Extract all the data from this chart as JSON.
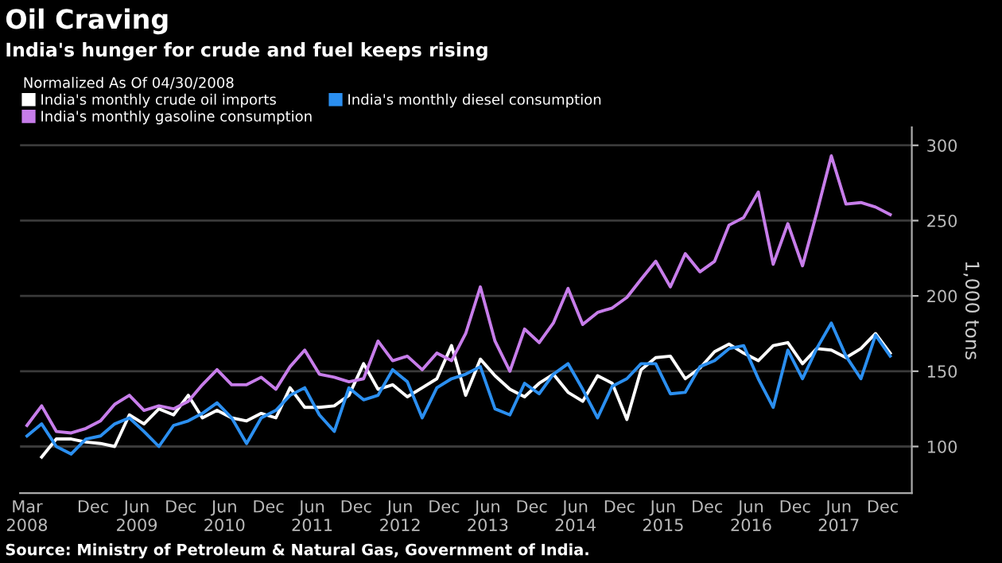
{
  "chart_data": {
    "type": "line",
    "title": "Oil Craving",
    "subtitle": "India's hunger for crude and fuel keeps rising",
    "legend_title": "Normalized As Of 04/30/2008",
    "legend": "top left",
    "ylabel": "1,000 tons",
    "x": [
      "2008-03",
      "2008-05",
      "2008-07",
      "2008-09",
      "2008-11",
      "2009-01",
      "2009-03",
      "2009-05",
      "2009-07",
      "2009-09",
      "2009-11",
      "2010-01",
      "2010-03",
      "2010-05",
      "2010-07",
      "2010-09",
      "2010-11",
      "2011-01",
      "2011-03",
      "2011-05",
      "2011-07",
      "2011-09",
      "2011-11",
      "2012-01",
      "2012-03",
      "2012-05",
      "2012-07",
      "2012-09",
      "2012-11",
      "2013-01",
      "2013-03",
      "2013-05",
      "2013-07",
      "2013-09",
      "2013-11",
      "2014-01",
      "2014-03",
      "2014-05",
      "2014-07",
      "2014-09",
      "2014-11",
      "2015-01",
      "2015-03",
      "2015-05",
      "2015-07",
      "2015-09",
      "2015-11",
      "2016-01",
      "2016-03",
      "2016-05",
      "2016-07",
      "2016-09",
      "2016-11",
      "2017-01",
      "2017-03",
      "2017-05",
      "2017-07",
      "2017-09",
      "2017-11",
      "2018-01"
    ],
    "series": [
      {
        "name": "India's monthly crude oil imports",
        "color": "#ffffff",
        "values": [
          null,
          93,
          105,
          105,
          103,
          102,
          100,
          121,
          115,
          125,
          121,
          134,
          119,
          124,
          119,
          117,
          122,
          119,
          139,
          126,
          126,
          127,
          134,
          155,
          138,
          141,
          133,
          139,
          145,
          167,
          134,
          158,
          147,
          138,
          133,
          142,
          148,
          136,
          130,
          147,
          142,
          118,
          151,
          159,
          160,
          145,
          152,
          163,
          168,
          162,
          157,
          167,
          169,
          155,
          165,
          164,
          159,
          165,
          175,
          162
        ]
      },
      {
        "name": "India's monthly diesel consumption",
        "color": "#2b8ff0",
        "values": [
          107,
          115,
          100,
          95,
          105,
          107,
          115,
          119,
          110,
          100,
          114,
          117,
          122,
          129,
          119,
          102,
          119,
          124,
          134,
          139,
          121,
          110,
          139,
          131,
          134,
          151,
          143,
          119,
          139,
          145,
          148,
          153,
          125,
          121,
          142,
          135,
          148,
          155,
          138,
          119,
          140,
          145,
          155,
          155,
          135,
          136,
          153,
          157,
          165,
          167,
          145,
          126,
          164,
          145,
          165,
          182,
          160,
          145,
          174,
          160
        ]
      },
      {
        "name": "India's monthly gasoline consumption",
        "color": "#c77dea",
        "values": [
          114,
          127,
          110,
          109,
          112,
          117,
          128,
          134,
          124,
          127,
          125,
          130,
          141,
          151,
          141,
          141,
          146,
          138,
          153,
          164,
          148,
          146,
          143,
          145,
          170,
          157,
          160,
          151,
          162,
          157,
          175,
          206,
          170,
          150,
          178,
          169,
          182,
          205,
          181,
          189,
          192,
          199,
          211,
          223,
          206,
          228,
          216,
          223,
          247,
          252,
          269,
          221,
          248,
          220,
          255,
          293,
          261,
          262,
          259,
          254
        ]
      }
    ],
    "xlim": [
      "2008-02",
      "2018-04"
    ],
    "xticks": [
      {
        "value": "2008-03",
        "label": "Mar\n2008"
      },
      {
        "value": "2008-12",
        "label": "Dec"
      },
      {
        "value": "2009-06",
        "label": "Jun\n2009"
      },
      {
        "value": "2009-12",
        "label": "Dec"
      },
      {
        "value": "2010-06",
        "label": "Jun\n2010"
      },
      {
        "value": "2010-12",
        "label": "Dec"
      },
      {
        "value": "2011-06",
        "label": "Jun\n2011"
      },
      {
        "value": "2011-12",
        "label": "Dec"
      },
      {
        "value": "2012-06",
        "label": "Jun\n2012"
      },
      {
        "value": "2012-12",
        "label": "Dec"
      },
      {
        "value": "2013-06",
        "label": "Jun\n2013"
      },
      {
        "value": "2013-12",
        "label": "Dec"
      },
      {
        "value": "2014-06",
        "label": "Jun\n2014"
      },
      {
        "value": "2014-12",
        "label": "Dec"
      },
      {
        "value": "2015-06",
        "label": "Jun\n2015"
      },
      {
        "value": "2015-12",
        "label": "Dec"
      },
      {
        "value": "2016-06",
        "label": "Jun\n2016"
      },
      {
        "value": "2016-12",
        "label": "Dec"
      },
      {
        "value": "2017-06",
        "label": "Jun\n2017"
      },
      {
        "value": "2017-12",
        "label": "Dec"
      }
    ],
    "ylim": [
      69,
      312
    ],
    "yticks": [
      100,
      150,
      200,
      250,
      300
    ],
    "grid": "y",
    "annotations": [
      "Source: Ministry of Petroleum & Natural Gas, Government of India."
    ]
  }
}
